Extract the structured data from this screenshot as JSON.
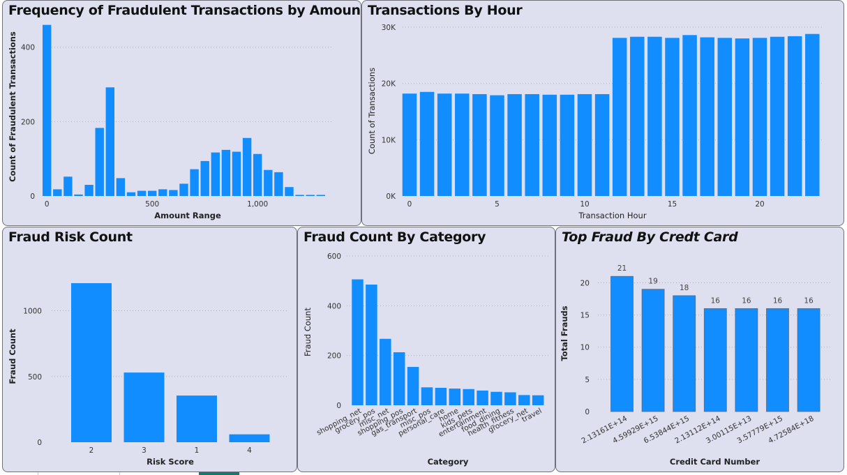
{
  "charts": [
    {
      "id": "amount",
      "title": "Frequency of Fraudulent Transactions by Amount",
      "type": "bar",
      "xlabel": "Amount Range",
      "ylabel": "Count of Fraudulent Transactions",
      "categories": [
        0,
        50,
        100,
        150,
        200,
        250,
        300,
        350,
        400,
        450,
        500,
        550,
        600,
        650,
        700,
        750,
        800,
        850,
        900,
        950,
        1000,
        1050,
        1100,
        1150,
        1200,
        1250,
        1300
      ],
      "values": [
        460,
        18,
        52,
        4,
        30,
        183,
        292,
        48,
        10,
        14,
        14,
        18,
        16,
        33,
        72,
        94,
        117,
        124,
        119,
        156,
        113,
        70,
        64,
        24,
        3,
        3,
        3
      ],
      "xticks": [
        {
          "v": 0,
          "label": "0"
        },
        {
          "v": 500,
          "label": "500"
        },
        {
          "v": 1000,
          "label": "1,000"
        }
      ],
      "yticks": [
        {
          "v": 0,
          "label": "0"
        },
        {
          "v": 200,
          "label": "200"
        },
        {
          "v": 400,
          "label": "400"
        }
      ],
      "ylim": [
        0,
        480
      ]
    },
    {
      "id": "hour",
      "title": "Transactions By Hour",
      "type": "bar",
      "xlabel": "Transaction Hour",
      "ylabel": "Count of Transactions",
      "categories": [
        0,
        1,
        2,
        3,
        4,
        5,
        6,
        7,
        8,
        9,
        10,
        11,
        12,
        13,
        14,
        15,
        16,
        17,
        18,
        19,
        20,
        21,
        22,
        23
      ],
      "values": [
        18200,
        18500,
        18200,
        18200,
        18100,
        17900,
        18100,
        18100,
        18000,
        18000,
        18100,
        18100,
        28100,
        28300,
        28300,
        28100,
        28600,
        28200,
        28100,
        28000,
        28100,
        28300,
        28400,
        28800
      ],
      "xticks": [
        {
          "v": 0,
          "label": "0"
        },
        {
          "v": 5,
          "label": "5"
        },
        {
          "v": 10,
          "label": "10"
        },
        {
          "v": 15,
          "label": "15"
        },
        {
          "v": 20,
          "label": "20"
        }
      ],
      "yticks": [
        {
          "v": 0,
          "label": "0K"
        },
        {
          "v": 10000,
          "label": "10K"
        },
        {
          "v": 20000,
          "label": "20K"
        },
        {
          "v": 30000,
          "label": "30K"
        }
      ],
      "ylim": [
        0,
        30000
      ]
    },
    {
      "id": "risk",
      "title": "Fraud Risk Count",
      "type": "bar",
      "xlabel": "Risk Score",
      "ylabel": "Fraud Count",
      "categories": [
        "2",
        "3",
        "1",
        "4"
      ],
      "values": [
        1210,
        530,
        355,
        60
      ],
      "yticks": [
        {
          "v": 0,
          "label": "0"
        },
        {
          "v": 500,
          "label": "500"
        },
        {
          "v": 1000,
          "label": "1000"
        }
      ],
      "ylim": [
        0,
        1300
      ]
    },
    {
      "id": "category",
      "title": "Fraud Count By Category",
      "type": "bar",
      "xlabel": "Category",
      "ylabel": "Fraud Count",
      "categories": [
        "shopping_net",
        "grocery_pos",
        "misc_net",
        "shopping_pos",
        "gas_transport",
        "misc_pos",
        "personal_care",
        "home",
        "kids_pets",
        "entertainment",
        "food_dining",
        "health_fitness",
        "grocery_net",
        "travel"
      ],
      "values": [
        506,
        485,
        267,
        213,
        154,
        72,
        70,
        67,
        65,
        59,
        54,
        52,
        41,
        40
      ],
      "yticks": [
        {
          "v": 0,
          "label": "0"
        },
        {
          "v": 200,
          "label": "200"
        },
        {
          "v": 400,
          "label": "400"
        },
        {
          "v": 600,
          "label": "600"
        }
      ],
      "ylim": [
        0,
        600
      ]
    },
    {
      "id": "card",
      "title": "Top Fraud By Credt Card",
      "type": "bar",
      "xlabel": "Credit Card Number",
      "ylabel": "Total Frauds",
      "categories": [
        "2.13161E+14",
        "4.59929E+15",
        "6.53844E+15",
        "2.13112E+14",
        "3.00115E+13",
        "3.57779E+15",
        "4.72584E+18"
      ],
      "values": [
        21,
        19,
        18,
        16,
        16,
        16,
        16
      ],
      "data_labels": [
        "21",
        "19",
        "18",
        "16",
        "16",
        "16",
        "16"
      ],
      "yticks": [
        {
          "v": 0,
          "label": "0"
        },
        {
          "v": 5,
          "label": "5"
        },
        {
          "v": 10,
          "label": "10"
        },
        {
          "v": 15,
          "label": "15"
        },
        {
          "v": 20,
          "label": "20"
        }
      ],
      "ylim": [
        0,
        22
      ]
    }
  ],
  "colors": {
    "bar": "#118dff",
    "panel": "#dedfef",
    "border": "#6f7079"
  }
}
